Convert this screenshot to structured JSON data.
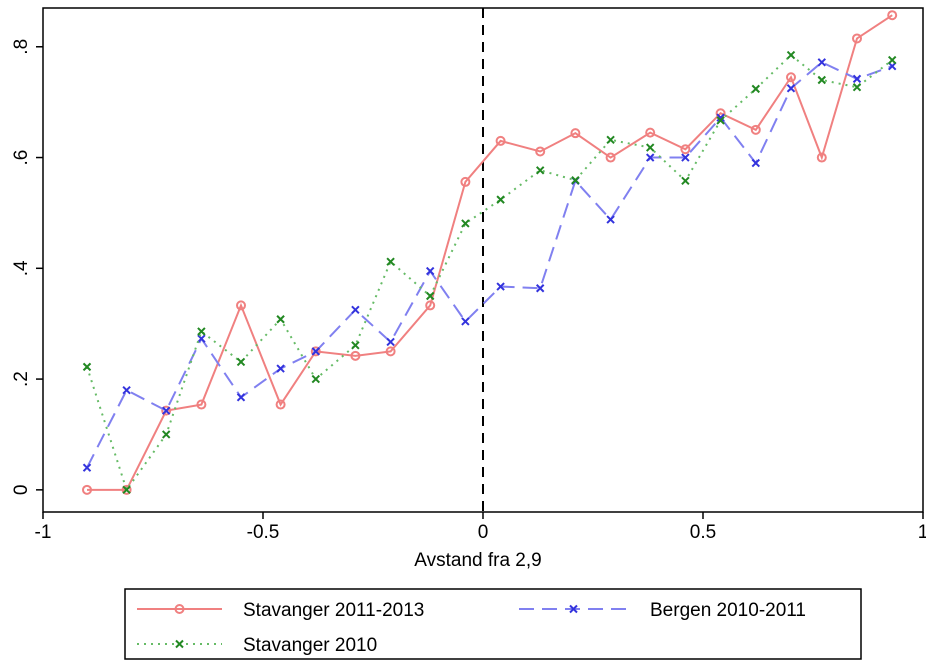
{
  "chart_data": {
    "type": "line",
    "title": "",
    "xlabel": "Avstand fra 2,9",
    "ylabel": "",
    "xlim": [
      -1,
      1
    ],
    "ylim": [
      -0.04,
      0.87
    ],
    "xticks": [
      -1,
      -0.5,
      0,
      0.5,
      1
    ],
    "xtick_labels": [
      "-1",
      "-0.5",
      "0",
      "0.5",
      "1"
    ],
    "yticks": [
      0,
      0.2,
      0.4,
      0.6,
      0.8
    ],
    "ytick_labels": [
      "0",
      ".2",
      ".4",
      ".6",
      ".8"
    ],
    "grid": false,
    "reference_line": {
      "x": 0,
      "style": "dashed",
      "color": "#000000"
    },
    "legend_position": "bottom",
    "series": [
      {
        "name": "Stavanger 2011-2013",
        "color": "#f08080",
        "line_style": "solid",
        "marker": "circle",
        "x": [
          -0.9,
          -0.81,
          -0.72,
          -0.64,
          -0.55,
          -0.46,
          -0.38,
          -0.29,
          -0.21,
          -0.12,
          -0.04,
          0.04,
          0.13,
          0.21,
          0.29,
          0.38,
          0.46,
          0.54,
          0.62,
          0.7,
          0.77,
          0.85,
          0.93
        ],
        "values": [
          0.0,
          0.0,
          0.143,
          0.154,
          0.333,
          0.154,
          0.25,
          0.242,
          0.25,
          0.333,
          0.556,
          0.63,
          0.611,
          0.644,
          0.6,
          0.645,
          0.615,
          0.68,
          0.65,
          0.745,
          0.6,
          0.815,
          0.857
        ]
      },
      {
        "name": "Bergen 2010-2011",
        "color": "#3333dd",
        "line_color": "#8080f0",
        "line_style": "longdash",
        "marker": "x",
        "x": [
          -0.9,
          -0.81,
          -0.72,
          -0.64,
          -0.55,
          -0.46,
          -0.38,
          -0.29,
          -0.21,
          -0.12,
          -0.04,
          0.04,
          0.13,
          0.21,
          0.29,
          0.38,
          0.46,
          0.54,
          0.62,
          0.7,
          0.77,
          0.85,
          0.93
        ],
        "values": [
          0.04,
          0.18,
          0.143,
          0.273,
          0.167,
          0.219,
          0.25,
          0.325,
          0.267,
          0.395,
          0.304,
          0.367,
          0.364,
          0.558,
          0.488,
          0.6,
          0.6,
          0.672,
          0.59,
          0.725,
          0.772,
          0.742,
          0.765
        ]
      },
      {
        "name": "Stavanger 2010",
        "color": "#228822",
        "line_color": "#66bb66",
        "line_style": "dotted",
        "marker": "x",
        "x": [
          -0.9,
          -0.81,
          -0.72,
          -0.64,
          -0.55,
          -0.46,
          -0.38,
          -0.29,
          -0.21,
          -0.12,
          -0.04,
          0.04,
          0.13,
          0.21,
          0.29,
          0.38,
          0.46,
          0.54,
          0.62,
          0.7,
          0.77,
          0.85,
          0.93
        ],
        "values": [
          0.222,
          0.0,
          0.1,
          0.286,
          0.231,
          0.308,
          0.2,
          0.261,
          0.412,
          0.35,
          0.481,
          0.524,
          0.577,
          0.559,
          0.632,
          0.618,
          0.558,
          0.667,
          0.724,
          0.785,
          0.74,
          0.727,
          0.776
        ]
      }
    ]
  }
}
